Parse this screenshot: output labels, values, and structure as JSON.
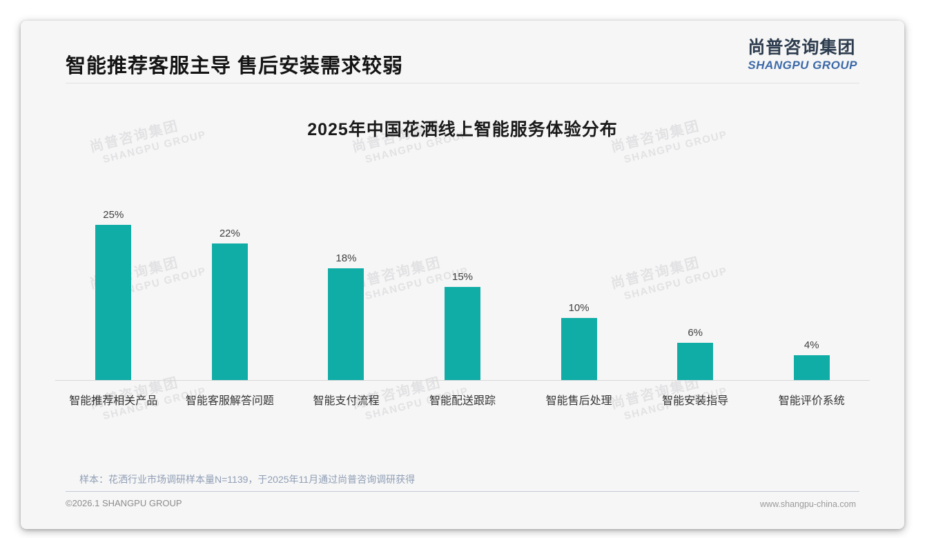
{
  "header": {
    "headline": "智能推荐客服主导 售后安装需求较弱",
    "logo_cn": "尚普咨询集团",
    "logo_en": "SHANGPU GROUP"
  },
  "chart_data": {
    "type": "bar",
    "title": "2025年中国花洒线上智能服务体验分布",
    "categories": [
      "智能推荐相关产品",
      "智能客服解答问题",
      "智能支付流程",
      "智能配送跟踪",
      "智能售后处理",
      "智能安装指导",
      "智能评价系统"
    ],
    "values": [
      25,
      22,
      18,
      15,
      10,
      6,
      4
    ],
    "value_labels": [
      "25%",
      "22%",
      "18%",
      "15%",
      "10%",
      "6%",
      "4%"
    ],
    "unit": "%",
    "bar_color": "#10ACA6",
    "ylim": [
      0,
      27
    ],
    "grid": false,
    "legend": "none",
    "xlabel": "",
    "ylabel": ""
  },
  "watermark": {
    "line1": "尚普咨询集团",
    "line2": "SHANGPU GROUP"
  },
  "footer": {
    "note": "样本：花洒行业市场调研样本量N=1139，于2025年11月通过尚普咨询调研获得",
    "copyright": "©2026.1 SHANGPU GROUP",
    "website": "www.shangpu-china.com"
  },
  "colors": {
    "bar": "#10ACA6",
    "logo_cn": "#2D3C4E",
    "logo_en": "#3B69A8",
    "note_text": "#8F9EB5",
    "card_bg": "#F6F6F6",
    "axis_line": "#D8D8D8"
  }
}
